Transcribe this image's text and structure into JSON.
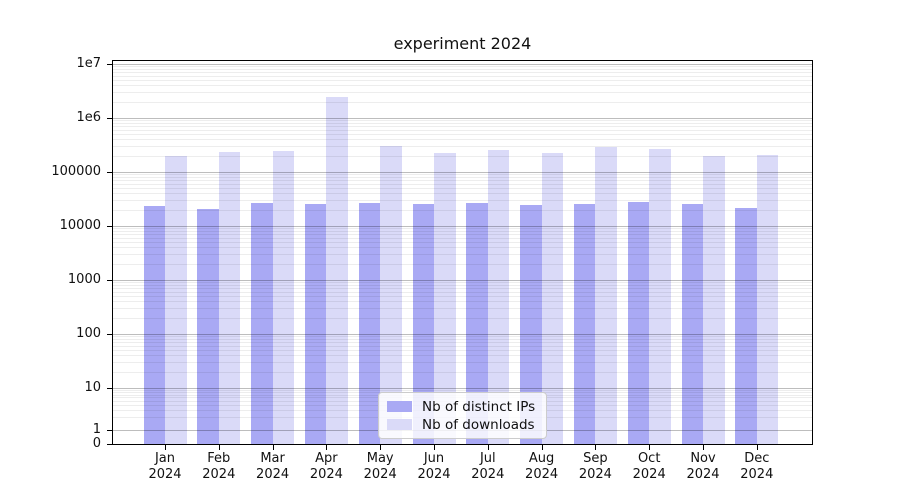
{
  "chart_data": {
    "type": "bar",
    "title": "experiment 2024",
    "categories": [
      "Jan 2024",
      "Feb 2024",
      "Mar 2024",
      "Apr 2024",
      "May 2024",
      "Jun 2024",
      "Jul 2024",
      "Aug 2024",
      "Sep 2024",
      "Oct 2024",
      "Nov 2024",
      "Dec 2024"
    ],
    "series": [
      {
        "name": "Nb of distinct IPs",
        "color": "#a9a9f4",
        "values": [
          23500,
          21000,
          26500,
          25500,
          26500,
          25500,
          26500,
          24500,
          25500,
          28000,
          25500,
          22000
        ]
      },
      {
        "name": "Nb of downloads",
        "color": "#dadaf8",
        "values": [
          200000,
          230000,
          240000,
          2450000,
          300000,
          225000,
          255000,
          225000,
          290000,
          265000,
          195000,
          210000
        ]
      }
    ],
    "yscale": "symlog",
    "ylim": [
      0,
      10000000
    ],
    "yticks": {
      "values": [
        0,
        1,
        10,
        100,
        1000,
        10000,
        100000,
        1000000,
        10000000
      ],
      "labels": [
        "0",
        "1",
        "10",
        "100",
        "1000",
        "10000",
        "100000",
        "1e6",
        "1e7"
      ]
    },
    "grid": "horizontal major and minor, drawn over bars",
    "legend_position": "lower center"
  }
}
